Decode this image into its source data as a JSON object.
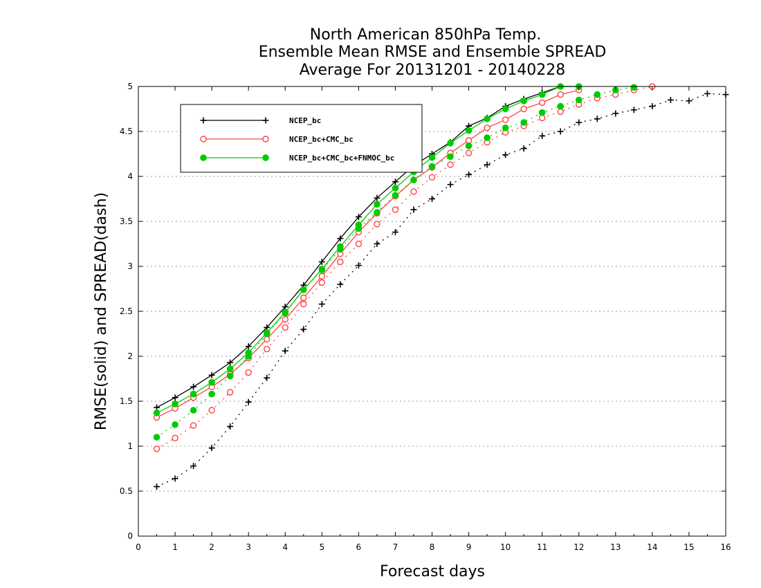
{
  "chart_data": {
    "type": "line",
    "title": [
      "North American 850hPa Temp.",
      "Ensemble Mean RMSE and Ensemble SPREAD",
      "Average For 20131201 - 20140228"
    ],
    "xlabel": "Forecast days",
    "ylabel": "RMSE(solid) and SPREAD(dash)",
    "xlim": [
      0,
      16
    ],
    "ylim": [
      0,
      5
    ],
    "x_ticks": [
      "0",
      "1",
      "2",
      "3",
      "4",
      "5",
      "6",
      "7",
      "8",
      "9",
      "10",
      "11",
      "12",
      "13",
      "14",
      "15",
      "16"
    ],
    "y_ticks": [
      "0",
      "0.5",
      "1",
      "1.5",
      "2",
      "2.5",
      "3",
      "3.5",
      "4",
      "4.5",
      "5"
    ],
    "grid": "horizontal dotted",
    "legend_placement": "top-left",
    "legend": [
      "NCEP_bc",
      "NCEP_bc+CMC_bc",
      "NCEP_bc+CMC_bc+FNMOC_bc"
    ],
    "series": [
      {
        "name": "NCEP_bc",
        "metric": "RMSE",
        "style": "solid",
        "marker": "plus",
        "color": "#000000",
        "x": [
          0.5,
          1,
          1.5,
          2,
          2.5,
          3,
          3.5,
          4,
          4.5,
          5,
          5.5,
          6,
          6.5,
          7,
          7.5,
          8,
          8.5,
          9,
          9.5,
          10,
          10.5,
          11,
          11.5,
          12
        ],
        "y": [
          1.43,
          1.54,
          1.66,
          1.79,
          1.93,
          2.11,
          2.32,
          2.55,
          2.79,
          3.05,
          3.31,
          3.55,
          3.76,
          3.94,
          4.12,
          4.25,
          4.38,
          4.56,
          4.65,
          4.78,
          4.86,
          4.93,
          5.0,
          5.0
        ]
      },
      {
        "name": "NCEP_bc+CMC_bc",
        "metric": "RMSE",
        "style": "solid",
        "marker": "open-circle",
        "color": "#ff4040",
        "x": [
          0.5,
          1,
          1.5,
          2,
          2.5,
          3,
          3.5,
          4,
          4.5,
          5,
          5.5,
          6,
          6.5,
          7,
          7.5,
          8,
          8.5,
          9,
          9.5,
          10,
          10.5,
          11,
          11.5,
          12
        ],
        "y": [
          1.32,
          1.42,
          1.54,
          1.66,
          1.8,
          1.98,
          2.19,
          2.41,
          2.65,
          2.89,
          3.14,
          3.38,
          3.59,
          3.78,
          3.96,
          4.1,
          4.26,
          4.4,
          4.54,
          4.63,
          4.75,
          4.82,
          4.91,
          4.96
        ]
      },
      {
        "name": "NCEP_bc+CMC_bc+FNMOC_bc",
        "metric": "RMSE",
        "style": "solid",
        "marker": "filled-circle",
        "color": "#00cc00",
        "x": [
          0.5,
          1,
          1.5,
          2,
          2.5,
          3,
          3.5,
          4,
          4.5,
          5,
          5.5,
          6,
          6.5,
          7,
          7.5,
          8,
          8.5,
          9,
          9.5,
          10,
          10.5,
          11,
          11.5,
          12
        ],
        "y": [
          1.37,
          1.47,
          1.58,
          1.71,
          1.86,
          2.04,
          2.26,
          2.49,
          2.74,
          2.97,
          3.22,
          3.46,
          3.69,
          3.87,
          4.05,
          4.21,
          4.37,
          4.51,
          4.64,
          4.75,
          4.84,
          4.91,
          5.0,
          5.0
        ]
      },
      {
        "name": "NCEP_bc",
        "metric": "SPREAD",
        "style": "dash",
        "marker": "plus",
        "color": "#000000",
        "x": [
          0.5,
          1,
          1.5,
          2,
          2.5,
          3,
          3.5,
          4,
          4.5,
          5,
          5.5,
          6,
          6.5,
          7,
          7.5,
          8,
          8.5,
          9,
          9.5,
          10,
          10.5,
          11,
          11.5,
          12,
          12.5,
          13,
          13.5,
          14,
          14.5,
          15,
          15.5,
          16
        ],
        "y": [
          0.55,
          0.64,
          0.78,
          0.98,
          1.22,
          1.49,
          1.76,
          2.06,
          2.3,
          2.58,
          2.8,
          3.01,
          3.25,
          3.38,
          3.63,
          3.75,
          3.91,
          4.02,
          4.13,
          4.24,
          4.31,
          4.45,
          4.5,
          4.6,
          4.64,
          4.7,
          4.74,
          4.78,
          4.85,
          4.84,
          4.92,
          4.91
        ]
      },
      {
        "name": "NCEP_bc+CMC_bc",
        "metric": "SPREAD",
        "style": "dash",
        "marker": "open-circle",
        "color": "#ff4040",
        "x": [
          0.5,
          1,
          1.5,
          2,
          2.5,
          3,
          3.5,
          4,
          4.5,
          5,
          5.5,
          6,
          6.5,
          7,
          7.5,
          8,
          8.5,
          9,
          9.5,
          10,
          10.5,
          11,
          11.5,
          12,
          12.5,
          13,
          13.5,
          14
        ],
        "y": [
          0.97,
          1.09,
          1.23,
          1.4,
          1.6,
          1.82,
          2.08,
          2.32,
          2.58,
          2.82,
          3.05,
          3.25,
          3.47,
          3.63,
          3.83,
          3.99,
          4.13,
          4.26,
          4.38,
          4.49,
          4.56,
          4.65,
          4.72,
          4.8,
          4.87,
          4.91,
          4.96,
          5.0
        ]
      },
      {
        "name": "NCEP_bc+CMC_bc+FNMOC_bc",
        "metric": "SPREAD",
        "style": "dash",
        "marker": "filled-circle",
        "color": "#00cc00",
        "x": [
          0.5,
          1,
          1.5,
          2,
          2.5,
          3,
          3.5,
          4,
          4.5,
          5,
          5.5,
          6,
          6.5,
          7,
          7.5,
          8,
          8.5,
          9,
          9.5,
          10,
          10.5,
          11,
          11.5,
          12,
          12.5,
          13,
          13.5
        ],
        "y": [
          1.1,
          1.24,
          1.4,
          1.58,
          1.78,
          2.0,
          2.25,
          2.48,
          2.74,
          2.96,
          3.19,
          3.42,
          3.6,
          3.79,
          3.96,
          4.11,
          4.22,
          4.34,
          4.43,
          4.54,
          4.6,
          4.71,
          4.78,
          4.85,
          4.91,
          4.96,
          4.99
        ]
      }
    ]
  }
}
